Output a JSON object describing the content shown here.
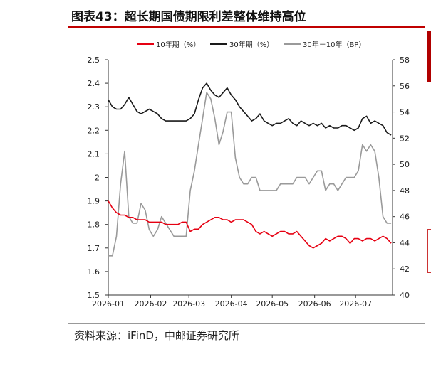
{
  "title": "图表43：超长期国债期限利差整体维持高位",
  "source": "资料来源：iFinD，中邮证券研究所",
  "chart_data": {
    "type": "line",
    "x_dates": [
      "2026-01-01",
      "2026-01-04",
      "2026-01-07",
      "2026-01-10",
      "2026-01-13",
      "2026-01-16",
      "2026-01-19",
      "2026-01-22",
      "2026-01-25",
      "2026-01-28",
      "2026-01-31",
      "2026-02-03",
      "2026-02-06",
      "2026-02-09",
      "2026-02-12",
      "2026-02-15",
      "2026-02-18",
      "2026-02-21",
      "2026-02-24",
      "2026-02-27",
      "2026-03-02",
      "2026-03-05",
      "2026-03-08",
      "2026-03-11",
      "2026-03-14",
      "2026-03-17",
      "2026-03-20",
      "2026-03-23",
      "2026-03-26",
      "2026-03-29",
      "2026-04-01",
      "2026-04-04",
      "2026-04-07",
      "2026-04-10",
      "2026-04-13",
      "2026-04-16",
      "2026-04-19",
      "2026-04-22",
      "2026-04-25",
      "2026-04-28",
      "2026-05-01",
      "2026-05-04",
      "2026-05-07",
      "2026-05-10",
      "2026-05-13",
      "2026-05-16",
      "2026-05-19",
      "2026-05-22",
      "2026-05-25",
      "2026-05-28",
      "2026-05-31",
      "2026-06-03",
      "2026-06-06",
      "2026-06-09",
      "2026-06-12",
      "2026-06-15",
      "2026-06-18",
      "2026-06-21",
      "2026-06-24",
      "2026-06-27",
      "2026-06-30",
      "2026-07-03",
      "2026-07-06",
      "2026-07-09",
      "2026-07-12",
      "2026-07-15",
      "2026-07-18",
      "2026-07-21",
      "2026-07-24",
      "2026-07-27"
    ],
    "series": [
      {
        "name": "10年期（%）",
        "axis": "left",
        "color": "#e60012",
        "values": [
          1.9,
          1.87,
          1.85,
          1.84,
          1.84,
          1.83,
          1.83,
          1.82,
          1.82,
          1.82,
          1.81,
          1.81,
          1.81,
          1.81,
          1.8,
          1.8,
          1.8,
          1.8,
          1.81,
          1.81,
          1.77,
          1.78,
          1.78,
          1.8,
          1.81,
          1.82,
          1.83,
          1.83,
          1.82,
          1.82,
          1.81,
          1.82,
          1.82,
          1.82,
          1.81,
          1.8,
          1.77,
          1.76,
          1.77,
          1.76,
          1.75,
          1.76,
          1.77,
          1.77,
          1.76,
          1.76,
          1.77,
          1.75,
          1.73,
          1.71,
          1.7,
          1.71,
          1.72,
          1.74,
          1.73,
          1.74,
          1.75,
          1.75,
          1.74,
          1.72,
          1.74,
          1.74,
          1.73,
          1.74,
          1.74,
          1.73,
          1.74,
          1.75,
          1.74,
          1.72
        ]
      },
      {
        "name": "30年期（%）",
        "axis": "left",
        "color": "#1a1a1a",
        "values": [
          2.33,
          2.3,
          2.29,
          2.29,
          2.31,
          2.34,
          2.31,
          2.28,
          2.27,
          2.28,
          2.29,
          2.28,
          2.27,
          2.25,
          2.24,
          2.24,
          2.24,
          2.24,
          2.24,
          2.24,
          2.25,
          2.27,
          2.33,
          2.38,
          2.4,
          2.37,
          2.35,
          2.34,
          2.36,
          2.38,
          2.35,
          2.33,
          2.3,
          2.28,
          2.26,
          2.24,
          2.25,
          2.27,
          2.24,
          2.23,
          2.22,
          2.23,
          2.23,
          2.24,
          2.25,
          2.23,
          2.22,
          2.24,
          2.23,
          2.22,
          2.23,
          2.22,
          2.23,
          2.21,
          2.22,
          2.21,
          2.21,
          2.22,
          2.22,
          2.21,
          2.2,
          2.21,
          2.25,
          2.26,
          2.23,
          2.24,
          2.23,
          2.22,
          2.19,
          2.18
        ]
      },
      {
        "name": "30年－10年（BP）",
        "axis": "right",
        "color": "#9a9a9a",
        "values": [
          43.0,
          43.0,
          44.5,
          48.5,
          51.0,
          46.0,
          45.5,
          45.5,
          47.0,
          46.5,
          45.0,
          44.5,
          45.0,
          46.0,
          45.5,
          45.0,
          44.5,
          44.5,
          44.5,
          44.5,
          48.0,
          49.5,
          51.5,
          53.5,
          55.5,
          55.0,
          53.5,
          51.5,
          52.5,
          54.0,
          54.0,
          50.5,
          49.0,
          48.5,
          48.5,
          49.0,
          49.0,
          48.0,
          48.0,
          48.0,
          48.0,
          48.0,
          48.5,
          48.5,
          48.5,
          48.5,
          49.0,
          49.0,
          49.0,
          48.5,
          49.0,
          49.5,
          49.5,
          48.0,
          48.5,
          48.5,
          48.0,
          48.5,
          49.0,
          49.0,
          49.0,
          49.5,
          51.5,
          51.0,
          51.5,
          51.0,
          49.0,
          46.0,
          45.5,
          45.5
        ]
      }
    ],
    "x_tick_labels": [
      "2026-01",
      "2026-02",
      "2026-03",
      "2026-04",
      "2026-05",
      "2026-06",
      "2026-07"
    ],
    "y_left": {
      "range": [
        1.5,
        2.5
      ],
      "ticks": [
        "1.5",
        "1.6",
        "1.7",
        "1.8",
        "1.9",
        "2",
        "2.1",
        "2.2",
        "2.3",
        "2.4",
        "2.5"
      ]
    },
    "y_right": {
      "range": [
        40,
        58
      ],
      "ticks": [
        "40",
        "42",
        "44",
        "46",
        "48",
        "50",
        "52",
        "54",
        "56",
        "58"
      ]
    },
    "legend_position": "top",
    "grid": false
  }
}
